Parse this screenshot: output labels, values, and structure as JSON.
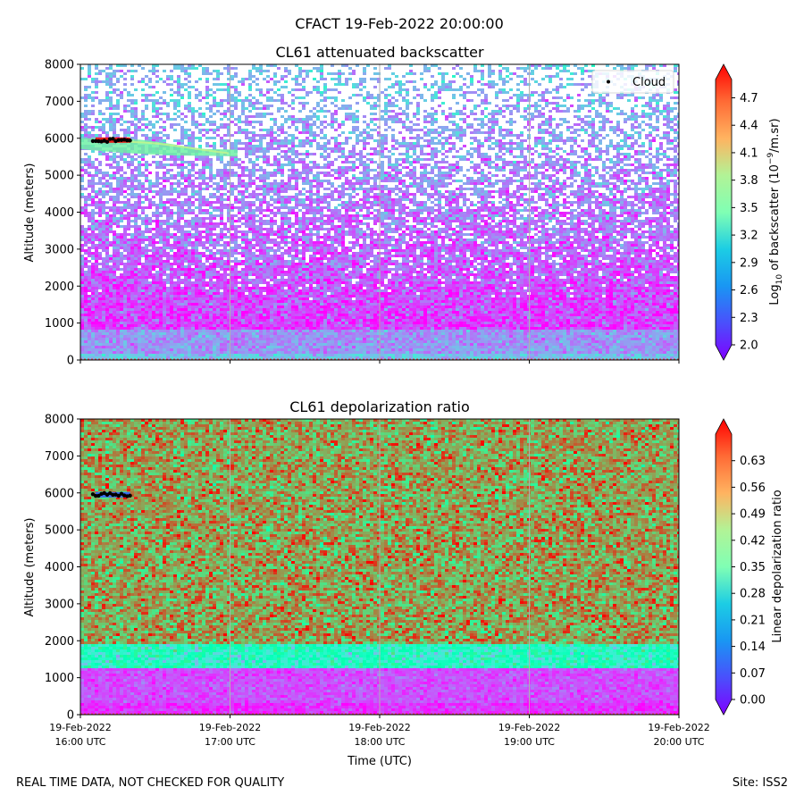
{
  "figure": {
    "title": "CFACT 19-Feb-2022 20:00:00",
    "footer_left": "REAL TIME DATA, NOT CHECKED FOR QUALITY",
    "footer_right": "Site: ISS2"
  },
  "chart_data": [
    {
      "type": "heatmap",
      "title": "CL61 attenuated backscatter",
      "xlabel": "",
      "ylabel": "Altitude (meters)",
      "x_ticks": [
        "19-Feb-2022|16:00 UTC",
        "19-Feb-2022|17:00 UTC",
        "19-Feb-2022|18:00 UTC",
        "19-Feb-2022|19:00 UTC",
        "19-Feb-2022|20:00 UTC"
      ],
      "x_tick_labels_visible": false,
      "y_ticks": [
        0,
        1000,
        2000,
        3000,
        4000,
        5000,
        6000,
        7000,
        8000
      ],
      "ylim": [
        0,
        8000
      ],
      "grid": "vertical lines at hourly ticks",
      "colormap": "rainbow",
      "colorbar": {
        "label": "Log10 of backscatter (10^-9/m.sr)",
        "label_parts": [
          "Log",
          "10",
          " of backscatter (10",
          "−9",
          "/m.sr)"
        ],
        "range": [
          2.0,
          4.9
        ],
        "ticks": [
          "2.0",
          "2.3",
          "2.6",
          "2.9",
          "3.2",
          "3.5",
          "3.8",
          "4.1",
          "4.4",
          "4.7"
        ],
        "extend": "both"
      },
      "legend": {
        "placement": "top-right",
        "entries": [
          {
            "label": "Cloud",
            "marker": "black dot"
          }
        ]
      },
      "cloud_points": {
        "x_range": [
          "16:05 UTC",
          "16:21 UTC"
        ],
        "altitude": 5950
      },
      "features": [
        {
          "name": "surface aerosol layer",
          "altitude_range": [
            0,
            800
          ],
          "value_approx": 2.6
        },
        {
          "name": "elevated layer",
          "x_range": [
            "16:00 UTC",
            "17:03 UTC"
          ],
          "altitude_range": [
            5500,
            5950
          ],
          "value_approx": 3.3
        }
      ]
    },
    {
      "type": "heatmap",
      "title": "CL61 depolarization ratio",
      "xlabel": "Time (UTC)",
      "ylabel": "Altitude (meters)",
      "x_ticks": [
        "19-Feb-2022|16:00 UTC",
        "19-Feb-2022|17:00 UTC",
        "19-Feb-2022|18:00 UTC",
        "19-Feb-2022|19:00 UTC",
        "19-Feb-2022|20:00 UTC"
      ],
      "y_ticks": [
        0,
        1000,
        2000,
        3000,
        4000,
        5000,
        6000,
        7000,
        8000
      ],
      "ylim": [
        0,
        8000
      ],
      "grid": "vertical lines at hourly ticks",
      "colormap": "rainbow",
      "colorbar": {
        "label": "Linear depolarization ratio",
        "range": [
          0.0,
          0.7
        ],
        "ticks": [
          "0.00",
          "0.07",
          "0.14",
          "0.21",
          "0.28",
          "0.35",
          "0.42",
          "0.49",
          "0.56",
          "0.63"
        ],
        "extend": "both"
      },
      "cloud_points": {
        "x_range": [
          "16:05 UTC",
          "16:21 UTC"
        ],
        "altitude": 5950
      },
      "features": [
        {
          "name": "low depolarization boundary layer",
          "altitude_range": [
            0,
            1300
          ],
          "value_approx": 0.05
        },
        {
          "name": "high noise region",
          "altitude_range": [
            1500,
            8000
          ],
          "value_approx": 0.55
        }
      ]
    }
  ]
}
